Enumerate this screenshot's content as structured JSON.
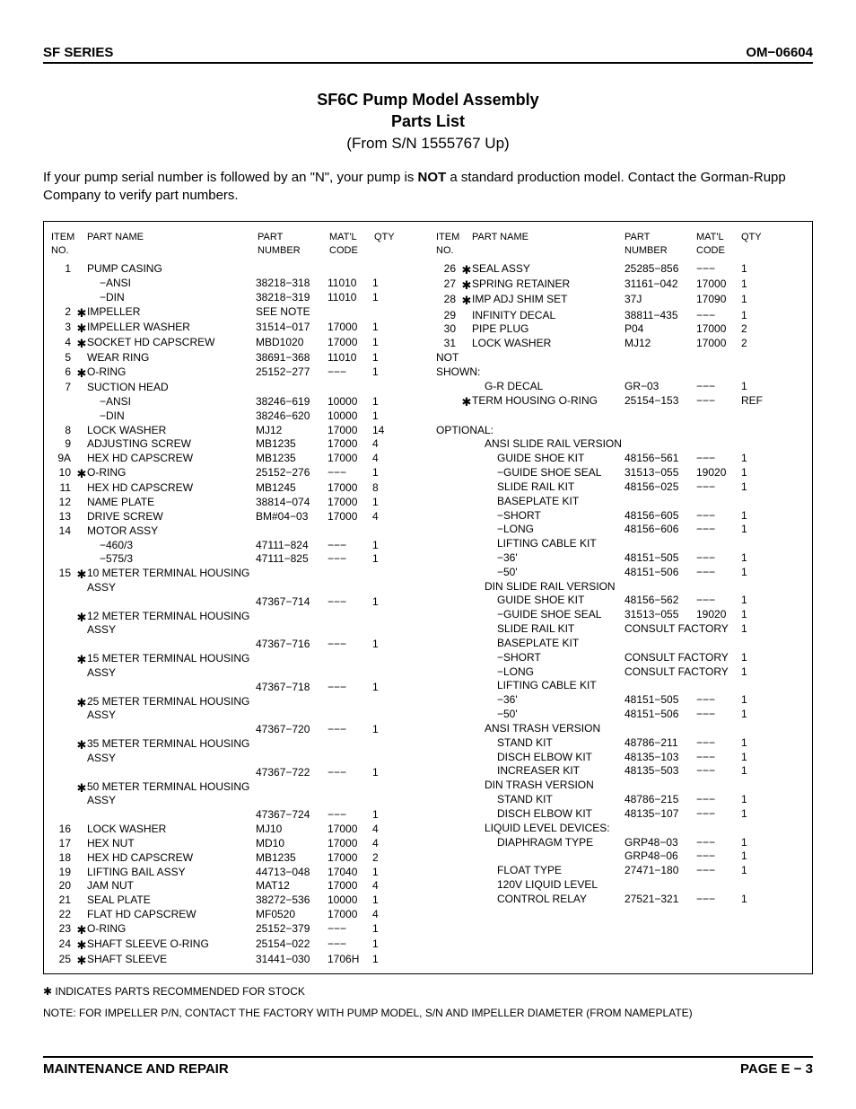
{
  "header": {
    "left": "SF SERIES",
    "right": "OM−06604"
  },
  "title": {
    "line1": "SF6C Pump Model Assembly",
    "line2": "Parts List",
    "sub": "(From S/N 1555767 Up)"
  },
  "intro": {
    "pre": "If your pump serial number is followed by an \"N\", your pump is ",
    "bold": "NOT",
    "post": " a standard production model. Contact the Gorman-Rupp Company to verify part numbers."
  },
  "columns_header": {
    "item": "ITEM\nNO.",
    "name": "PART NAME",
    "part": "PART\nNUMBER",
    "matl": "MAT'L\nCODE",
    "qty": "QTY"
  },
  "left_rows": [
    {
      "item": "1",
      "star": "",
      "name": "PUMP CASING",
      "part": "",
      "matl": "",
      "qty": ""
    },
    {
      "item": "",
      "star": "",
      "name": "−ANSI",
      "indent": 1,
      "part": "38218−318",
      "matl": "11010",
      "qty": "1"
    },
    {
      "item": "",
      "star": "",
      "name": "−DIN",
      "indent": 1,
      "part": "38218−319",
      "matl": "11010",
      "qty": "1"
    },
    {
      "item": "2",
      "star": "✱",
      "name": "IMPELLER",
      "part": "SEE NOTE",
      "matl": "",
      "qty": ""
    },
    {
      "item": "3",
      "star": "✱",
      "name": "IMPELLER WASHER",
      "part": "31514−017",
      "matl": "17000",
      "qty": "1"
    },
    {
      "item": "4",
      "star": "✱",
      "name": "SOCKET HD CAPSCREW",
      "part": "MBD1020",
      "matl": "17000",
      "qty": "1"
    },
    {
      "item": "5",
      "star": "",
      "name": "WEAR RING",
      "part": "38691−368",
      "matl": "11010",
      "qty": "1"
    },
    {
      "item": "6",
      "star": "✱",
      "name": "O-RING",
      "part": "25152−277",
      "matl": "−−−",
      "qty": "1"
    },
    {
      "item": "7",
      "star": "",
      "name": "SUCTION HEAD",
      "part": "",
      "matl": "",
      "qty": ""
    },
    {
      "item": "",
      "star": "",
      "name": "−ANSI",
      "indent": 1,
      "part": "38246−619",
      "matl": "10000",
      "qty": "1"
    },
    {
      "item": "",
      "star": "",
      "name": "−DIN",
      "indent": 1,
      "part": "38246−620",
      "matl": "10000",
      "qty": "1"
    },
    {
      "item": "8",
      "star": "",
      "name": "LOCK WASHER",
      "part": "MJ12",
      "matl": "17000",
      "qty": "14"
    },
    {
      "item": "9",
      "star": "",
      "name": "ADJUSTING SCREW",
      "part": "MB1235",
      "matl": "17000",
      "qty": "4"
    },
    {
      "item": "9A",
      "star": "",
      "name": "HEX HD CAPSCREW",
      "part": "MB1235",
      "matl": "17000",
      "qty": "4"
    },
    {
      "item": "10",
      "star": "✱",
      "name": "O-RING",
      "part": "25152−276",
      "matl": "−−−",
      "qty": "1"
    },
    {
      "item": "11",
      "star": "",
      "name": "HEX HD CAPSCREW",
      "part": "MB1245",
      "matl": "17000",
      "qty": "8"
    },
    {
      "item": "12",
      "star": "",
      "name": "NAME PLATE",
      "part": "38814−074",
      "matl": "17000",
      "qty": "1"
    },
    {
      "item": "13",
      "star": "",
      "name": "DRIVE SCREW",
      "part": "BM#04−03",
      "matl": "17000",
      "qty": "4"
    },
    {
      "item": "14",
      "star": "",
      "name": "MOTOR ASSY",
      "part": "",
      "matl": "",
      "qty": ""
    },
    {
      "item": "",
      "star": "",
      "name": "−460/3",
      "indent": 1,
      "part": "47111−824",
      "matl": "−−−",
      "qty": "1"
    },
    {
      "item": "",
      "star": "",
      "name": "−575/3",
      "indent": 1,
      "part": "47111−825",
      "matl": "−−−",
      "qty": "1"
    },
    {
      "item": "15",
      "star": "✱",
      "name": "10 METER TERMINAL HOUSING ASSY",
      "part": "",
      "matl": "",
      "qty": ""
    },
    {
      "item": "",
      "star": "",
      "name": "",
      "part": "47367−714",
      "matl": "−−−",
      "qty": "1"
    },
    {
      "item": "",
      "star": "✱",
      "name": "12 METER TERMINAL HOUSING ASSY",
      "part": "",
      "matl": "",
      "qty": ""
    },
    {
      "item": "",
      "star": "",
      "name": "",
      "part": "47367−716",
      "matl": "−−−",
      "qty": "1"
    },
    {
      "item": "",
      "star": "✱",
      "name": "15 METER TERMINAL HOUSING ASSY",
      "part": "",
      "matl": "",
      "qty": ""
    },
    {
      "item": "",
      "star": "",
      "name": "",
      "part": "47367−718",
      "matl": "−−−",
      "qty": "1"
    },
    {
      "item": "",
      "star": "✱",
      "name": "25 METER TERMINAL HOUSING ASSY",
      "part": "",
      "matl": "",
      "qty": ""
    },
    {
      "item": "",
      "star": "",
      "name": "",
      "part": "47367−720",
      "matl": "−−−",
      "qty": "1"
    },
    {
      "item": "",
      "star": "✱",
      "name": "35 METER TERMINAL HOUSING ASSY",
      "part": "",
      "matl": "",
      "qty": ""
    },
    {
      "item": "",
      "star": "",
      "name": "",
      "part": "47367−722",
      "matl": "−−−",
      "qty": "1"
    },
    {
      "item": "",
      "star": "✱",
      "name": "50 METER TERMINAL HOUSING ASSY",
      "part": "",
      "matl": "",
      "qty": ""
    },
    {
      "item": "",
      "star": "",
      "name": "",
      "part": "47367−724",
      "matl": "−−−",
      "qty": "1"
    },
    {
      "item": "16",
      "star": "",
      "name": "LOCK WASHER",
      "part": "MJ10",
      "matl": "17000",
      "qty": "4"
    },
    {
      "item": "17",
      "star": "",
      "name": "HEX NUT",
      "part": "MD10",
      "matl": "17000",
      "qty": "4"
    },
    {
      "item": "18",
      "star": "",
      "name": "HEX HD CAPSCREW",
      "part": "MB1235",
      "matl": "17000",
      "qty": "2"
    },
    {
      "item": "19",
      "star": "",
      "name": "LIFTING BAIL ASSY",
      "part": "44713−048",
      "matl": "17040",
      "qty": "1"
    },
    {
      "item": "20",
      "star": "",
      "name": "JAM NUT",
      "part": "MAT12",
      "matl": "17000",
      "qty": "4"
    },
    {
      "item": "21",
      "star": "",
      "name": "SEAL PLATE",
      "part": "38272−536",
      "matl": "10000",
      "qty": "1"
    },
    {
      "item": "22",
      "star": "",
      "name": "FLAT HD CAPSCREW",
      "part": "MF0520",
      "matl": "17000",
      "qty": "4"
    },
    {
      "item": "23",
      "star": "✱",
      "name": "O-RING",
      "part": "25152−379",
      "matl": "−−−",
      "qty": "1"
    },
    {
      "item": "24",
      "star": "✱",
      "name": "SHAFT SLEEVE O-RING",
      "part": "25154−022",
      "matl": "−−−",
      "qty": "1"
    },
    {
      "item": "25",
      "star": "✱",
      "name": "SHAFT SLEEVE",
      "part": "31441−030",
      "matl": "1706H",
      "qty": "1"
    }
  ],
  "right_rows": [
    {
      "item": "26",
      "star": "✱",
      "name": "SEAL ASSY",
      "part": "25285−856",
      "matl": "−−−",
      "qty": "1"
    },
    {
      "item": "27",
      "star": "✱",
      "name": "SPRING RETAINER",
      "part": "31161−042",
      "matl": "17000",
      "qty": "1"
    },
    {
      "item": "28",
      "star": "✱",
      "name": "IMP ADJ SHIM SET",
      "part": "37J",
      "matl": "17090",
      "qty": "1"
    },
    {
      "item": "29",
      "star": "",
      "name": "INFINITY DECAL",
      "part": "38811−435",
      "matl": "−−−",
      "qty": "1"
    },
    {
      "item": "30",
      "star": "",
      "name": "PIPE PLUG",
      "part": "P04",
      "matl": "17000",
      "qty": "2"
    },
    {
      "item": "31",
      "star": "",
      "name": "LOCK WASHER",
      "part": "MJ12",
      "matl": "17000",
      "qty": "2"
    },
    {
      "item": "",
      "star": "",
      "name": "NOT SHOWN:",
      "indent": -1,
      "part": "",
      "matl": "",
      "qty": ""
    },
    {
      "item": "",
      "star": "",
      "name": "G-R DECAL",
      "indent": 1,
      "part": "GR−03",
      "matl": "−−−",
      "qty": "1"
    },
    {
      "item": "",
      "star": "✱",
      "name": "TERM HOUSING O-RING",
      "part": "25154−153",
      "matl": "−−−",
      "qty": "REF"
    },
    {
      "blank": true
    },
    {
      "item": "",
      "star": "",
      "name": "OPTIONAL:",
      "indent": -1,
      "part": "",
      "matl": "",
      "qty": ""
    },
    {
      "item": "",
      "star": "",
      "name": "ANSI SLIDE RAIL VERSION",
      "indent": 1,
      "part": "",
      "matl": "",
      "qty": ""
    },
    {
      "item": "",
      "star": "",
      "name": "GUIDE SHOE KIT",
      "indent": 2,
      "part": "48156−561",
      "matl": "−−−",
      "qty": "1"
    },
    {
      "item": "",
      "star": "",
      "name": "−GUIDE SHOE SEAL",
      "indent": 2,
      "part": "31513−055",
      "matl": "19020",
      "qty": "1"
    },
    {
      "item": "",
      "star": "",
      "name": "SLIDE RAIL KIT",
      "indent": 2,
      "part": "48156−025",
      "matl": "−−−",
      "qty": "1"
    },
    {
      "item": "",
      "star": "",
      "name": "BASEPLATE KIT",
      "indent": 2,
      "part": "",
      "matl": "",
      "qty": ""
    },
    {
      "item": "",
      "star": "",
      "name": "−SHORT",
      "indent": 2,
      "part": "48156−605",
      "matl": "−−−",
      "qty": "1"
    },
    {
      "item": "",
      "star": "",
      "name": "−LONG",
      "indent": 2,
      "part": "48156−606",
      "matl": "−−−",
      "qty": "1"
    },
    {
      "item": "",
      "star": "",
      "name": "LIFTING CABLE KIT",
      "indent": 2,
      "part": "",
      "matl": "",
      "qty": ""
    },
    {
      "item": "",
      "star": "",
      "name": "−36'",
      "indent": 2,
      "part": "48151−505",
      "matl": "−−−",
      "qty": "1"
    },
    {
      "item": "",
      "star": "",
      "name": "−50'",
      "indent": 2,
      "part": "48151−506",
      "matl": "−−−",
      "qty": "1"
    },
    {
      "item": "",
      "star": "",
      "name": "DIN SLIDE RAIL VERSION",
      "indent": 1,
      "part": "",
      "matl": "",
      "qty": ""
    },
    {
      "item": "",
      "star": "",
      "name": "GUIDE SHOE KIT",
      "indent": 2,
      "part": "48156−562",
      "matl": "−−−",
      "qty": "1"
    },
    {
      "item": "",
      "star": "",
      "name": "−GUIDE SHOE SEAL",
      "indent": 2,
      "part": "31513−055",
      "matl": "19020",
      "qty": "1"
    },
    {
      "item": "",
      "star": "",
      "name": "SLIDE RAIL KIT",
      "indent": 2,
      "part": "CONSULT FACTORY",
      "matl": "",
      "qty": "1",
      "wide": true
    },
    {
      "item": "",
      "star": "",
      "name": "BASEPLATE KIT",
      "indent": 2,
      "part": "",
      "matl": "",
      "qty": ""
    },
    {
      "item": "",
      "star": "",
      "name": "−SHORT",
      "indent": 2,
      "part": "CONSULT FACTORY",
      "matl": "",
      "qty": "1",
      "wide": true
    },
    {
      "item": "",
      "star": "",
      "name": "−LONG",
      "indent": 2,
      "part": "CONSULT FACTORY",
      "matl": "",
      "qty": "1",
      "wide": true
    },
    {
      "item": "",
      "star": "",
      "name": "LIFTING CABLE KIT",
      "indent": 2,
      "part": "",
      "matl": "",
      "qty": ""
    },
    {
      "item": "",
      "star": "",
      "name": "−36'",
      "indent": 2,
      "part": "48151−505",
      "matl": "−−−",
      "qty": "1"
    },
    {
      "item": "",
      "star": "",
      "name": "−50'",
      "indent": 2,
      "part": "48151−506",
      "matl": "−−−",
      "qty": "1"
    },
    {
      "item": "",
      "star": "",
      "name": "ANSI TRASH VERSION",
      "indent": 1,
      "part": "",
      "matl": "",
      "qty": ""
    },
    {
      "item": "",
      "star": "",
      "name": "STAND KIT",
      "indent": 2,
      "part": "48786−211",
      "matl": "−−−",
      "qty": "1"
    },
    {
      "item": "",
      "star": "",
      "name": "DISCH ELBOW KIT",
      "indent": 2,
      "part": "48135−103",
      "matl": "−−−",
      "qty": "1"
    },
    {
      "item": "",
      "star": "",
      "name": "INCREASER KIT",
      "indent": 2,
      "part": "48135−503",
      "matl": "−−−",
      "qty": "1"
    },
    {
      "item": "",
      "star": "",
      "name": "DIN TRASH VERSION",
      "indent": 1,
      "part": "",
      "matl": "",
      "qty": ""
    },
    {
      "item": "",
      "star": "",
      "name": "STAND KIT",
      "indent": 2,
      "part": "48786−215",
      "matl": "−−−",
      "qty": "1"
    },
    {
      "item": "",
      "star": "",
      "name": "DISCH ELBOW KIT",
      "indent": 2,
      "part": "48135−107",
      "matl": "−−−",
      "qty": "1"
    },
    {
      "item": "",
      "star": "",
      "name": "LIQUID LEVEL DEVICES:",
      "indent": 1,
      "part": "",
      "matl": "",
      "qty": ""
    },
    {
      "item": "",
      "star": "",
      "name": "DIAPHRAGM TYPE",
      "indent": 2,
      "part": "GRP48−03",
      "matl": "−−−",
      "qty": "1"
    },
    {
      "item": "",
      "star": "",
      "name": "",
      "indent": 2,
      "part": "GRP48−06",
      "matl": "−−−",
      "qty": "1"
    },
    {
      "item": "",
      "star": "",
      "name": "FLOAT TYPE",
      "indent": 2,
      "part": "27471−180",
      "matl": "−−−",
      "qty": "1"
    },
    {
      "item": "",
      "star": "",
      "name": "120V LIQUID LEVEL",
      "indent": 2,
      "part": "",
      "matl": "",
      "qty": ""
    },
    {
      "item": "",
      "star": "",
      "name": "CONTROL RELAY",
      "indent": 2,
      "part": "27521−321",
      "matl": "−−−",
      "qty": "1"
    }
  ],
  "footnote": "✱ INDICATES PARTS RECOMMENDED FOR STOCK",
  "note": "NOTE: FOR IMPELLER P/N, CONTACT THE FACTORY WITH PUMP MODEL, S/N AND IMPELLER DIAMETER (FROM NAMEPLATE)",
  "footer": {
    "left": "MAINTENANCE AND REPAIR",
    "right": "PAGE E − 3"
  }
}
